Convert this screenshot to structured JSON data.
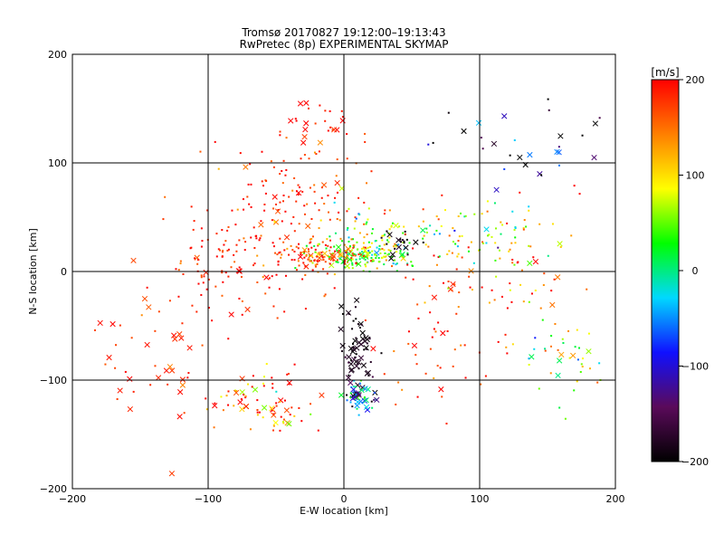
{
  "chart_data": {
    "type": "scatter",
    "title": "Tromsø 20170827 19:12:00–19:13:43",
    "subtitle": "RwPretec (8p) EXPERIMENTAL SKYMAP",
    "xlabel": "E-W location [km]",
    "ylabel": "N-S location [km]",
    "xlim": [
      -200,
      200
    ],
    "ylim": [
      -200,
      200
    ],
    "xticks": [
      -200,
      -100,
      0,
      100,
      200
    ],
    "yticks": [
      -200,
      -100,
      0,
      100,
      200
    ],
    "grid": true,
    "colorbar": {
      "label": "[m/s]",
      "range": [
        -200,
        200
      ],
      "ticks": [
        200,
        100,
        0,
        -100,
        -200
      ],
      "colors": [
        "#000000",
        "#5a0a5a",
        "#1010ff",
        "#00d8ff",
        "#00ff00",
        "#ffff00",
        "#ff7f00",
        "#ff0000"
      ]
    },
    "clusters": [
      {
        "cx": 15,
        "cy": 15,
        "rx": 30,
        "ry": 10,
        "n": 140,
        "v": 40,
        "vs": 40,
        "xf": 0.15
      },
      {
        "cx": -15,
        "cy": 15,
        "rx": 25,
        "ry": 10,
        "n": 90,
        "v": 170,
        "vs": 30,
        "xf": 0.15
      },
      {
        "cx": -35,
        "cy": 60,
        "rx": 45,
        "ry": 60,
        "n": 140,
        "v": 180,
        "vs": 30,
        "xf": 0.05
      },
      {
        "cx": 20,
        "cy": 35,
        "rx": 40,
        "ry": 25,
        "n": 80,
        "v": 60,
        "vs": 60,
        "xf": 0.05
      },
      {
        "cx": 10,
        "cy": -75,
        "rx": 10,
        "ry": 45,
        "n": 70,
        "v": -190,
        "vs": 15,
        "xf": 0.6
      },
      {
        "cx": 10,
        "cy": -115,
        "rx": 12,
        "ry": 12,
        "n": 45,
        "v": -60,
        "vs": 60,
        "xf": 0.4
      },
      {
        "cx": -70,
        "cy": -115,
        "rx": 30,
        "ry": 20,
        "n": 55,
        "v": 160,
        "vs": 70,
        "xf": 0.3
      },
      {
        "cx": -80,
        "cy": 10,
        "rx": 45,
        "ry": 45,
        "n": 110,
        "v": 185,
        "vs": 25,
        "xf": 0.1
      },
      {
        "cx": 100,
        "cy": 0,
        "rx": 70,
        "ry": 50,
        "n": 100,
        "v": 160,
        "vs": 60,
        "xf": 0.1
      },
      {
        "cx": 95,
        "cy": 30,
        "rx": 45,
        "ry": 25,
        "n": 60,
        "v": 50,
        "vs": 70,
        "xf": 0.1
      },
      {
        "cx": 160,
        "cy": -80,
        "rx": 25,
        "ry": 30,
        "n": 40,
        "v": 60,
        "vs": 50,
        "xf": 0.1
      },
      {
        "cx": 120,
        "cy": 110,
        "rx": 60,
        "ry": 40,
        "n": 30,
        "v": -150,
        "vs": 100,
        "xf": 0.4
      },
      {
        "cx": -140,
        "cy": -70,
        "rx": 40,
        "ry": 60,
        "n": 45,
        "v": 185,
        "vs": 20,
        "xf": 0.35
      },
      {
        "cx": 70,
        "cy": -80,
        "rx": 45,
        "ry": 45,
        "n": 35,
        "v": 180,
        "vs": 30,
        "xf": 0.2
      },
      {
        "cx": 40,
        "cy": 25,
        "rx": 15,
        "ry": 12,
        "n": 20,
        "v": -190,
        "vs": 10,
        "xf": 0.4
      },
      {
        "cx": -20,
        "cy": 140,
        "rx": 25,
        "ry": 15,
        "n": 20,
        "v": 190,
        "vs": 15,
        "xf": 0.5
      },
      {
        "cx": -40,
        "cy": -135,
        "rx": 30,
        "ry": 15,
        "n": 25,
        "v": 130,
        "vs": 50,
        "xf": 0.3
      }
    ]
  }
}
